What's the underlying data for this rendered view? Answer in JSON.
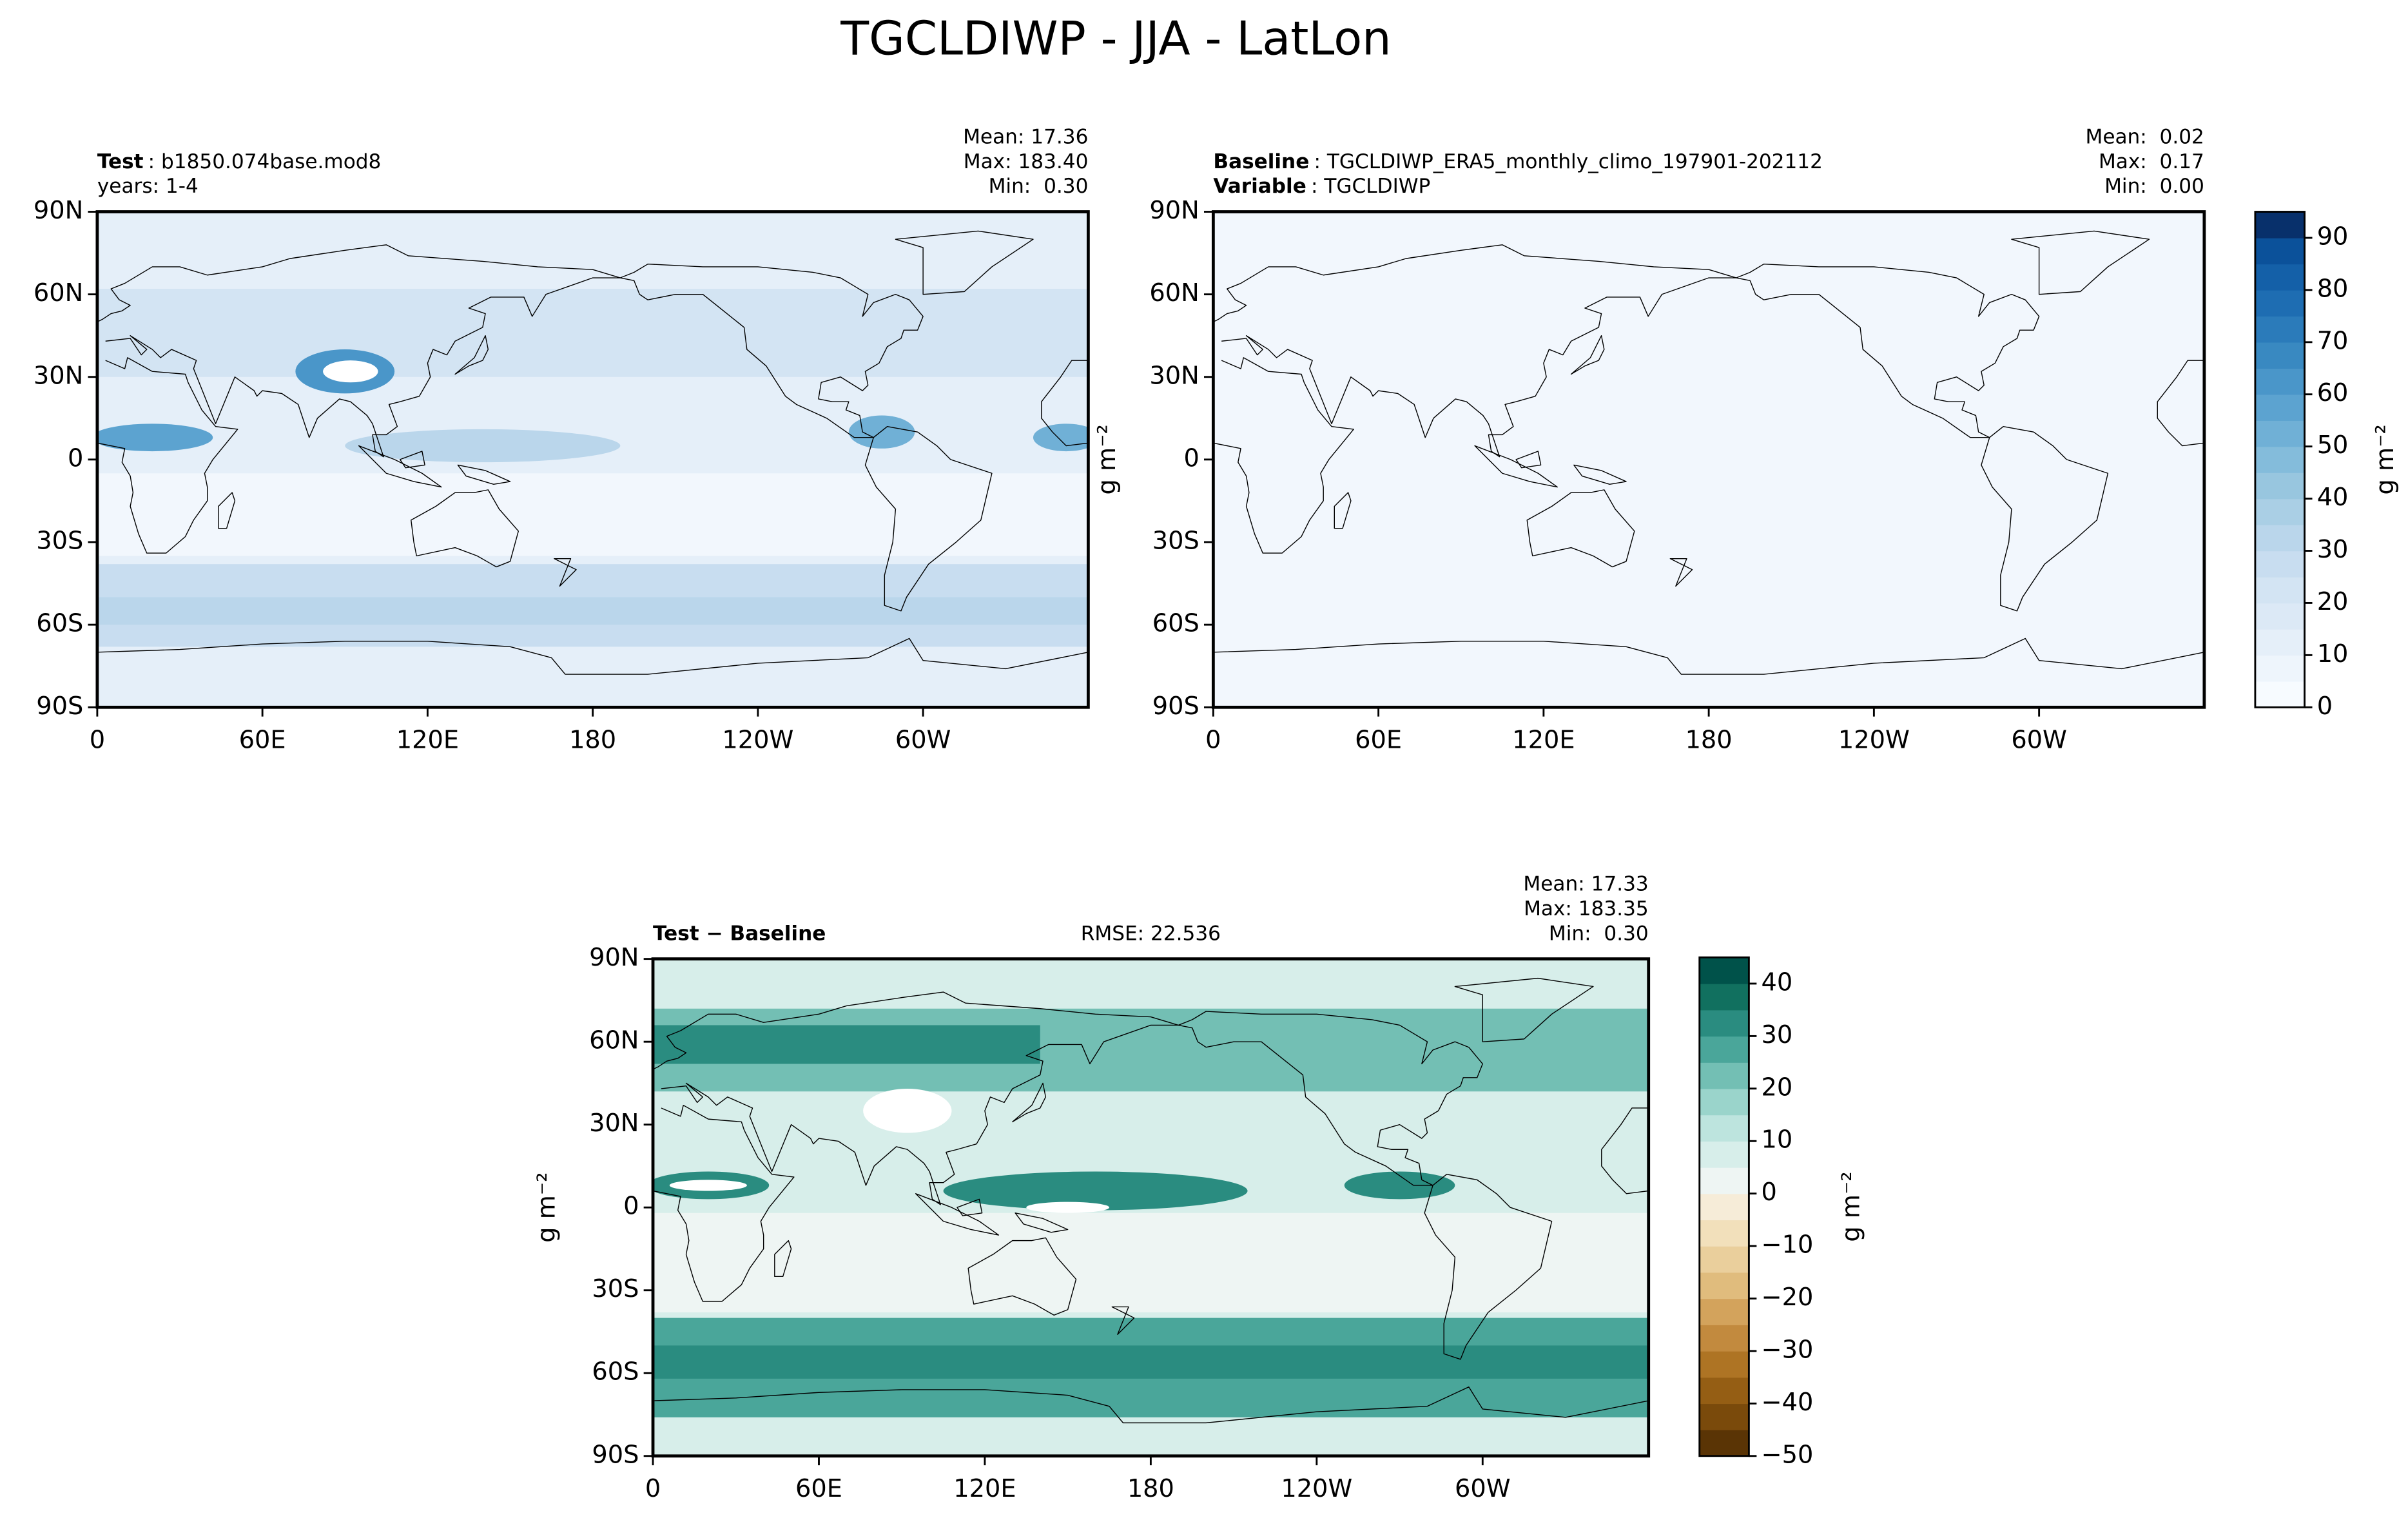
{
  "title": "TGCLDIWP - JJA - LatLon",
  "chart_data": [
    {
      "type": "map",
      "headings": [
        {
          "bold": "Test",
          "text": ": b1850.074base.mod8"
        },
        {
          "text": "years: 1-4"
        }
      ],
      "stats": [
        "Mean: 17.36",
        "Max: 183.40",
        "Min:  0.30"
      ],
      "xlim": [
        0,
        360
      ],
      "ylim": [
        -90,
        90
      ],
      "xticks": [
        0,
        {
          "value": 60,
          "label": "60E"
        },
        {
          "value": 120,
          "label": "120E"
        },
        180,
        {
          "value": 240,
          "label": "120W"
        },
        {
          "value": 300,
          "label": "60W"
        }
      ],
      "yticks": [
        {
          "value": -90,
          "label": "90S"
        },
        {
          "value": -60,
          "label": "60S"
        },
        {
          "value": -30,
          "label": "30S"
        },
        0,
        {
          "value": 30,
          "label": "30N"
        },
        {
          "value": 60,
          "label": "60N"
        },
        {
          "value": 90,
          "label": "90N"
        }
      ]
    },
    {
      "type": "map",
      "headings": [
        {
          "bold": "Baseline",
          "text": ": TGCLDIWP_ERA5_monthly_climo_197901-202112"
        },
        {
          "bold": "Variable",
          "text": ": TGCLDIWP"
        }
      ],
      "stats": [
        "Mean:  0.02",
        "Max:  0.17",
        "Min:  0.00"
      ],
      "ylabel": "g m⁻²",
      "xlim": [
        0,
        360
      ],
      "ylim": [
        -90,
        90
      ],
      "xticks": [
        0,
        {
          "value": 60,
          "label": "60E"
        },
        {
          "value": 120,
          "label": "120E"
        },
        180,
        {
          "value": 240,
          "label": "120W"
        },
        {
          "value": 300,
          "label": "60W"
        }
      ],
      "yticks": [
        {
          "value": -90,
          "label": "90S"
        },
        {
          "value": -60,
          "label": "60S"
        },
        {
          "value": -30,
          "label": "30S"
        },
        0,
        {
          "value": 30,
          "label": "30N"
        },
        {
          "value": 60,
          "label": "60N"
        },
        {
          "value": 90,
          "label": "90N"
        }
      ],
      "colorbar": {
        "levels": [
          0,
          5,
          10,
          15,
          20,
          25,
          30,
          35,
          40,
          45,
          50,
          55,
          60,
          65,
          70,
          75,
          80,
          85,
          90,
          95
        ],
        "colors": [
          "#f7fbff",
          "#eef5fc",
          "#e5eff9",
          "#dce9f6",
          "#d3e4f3",
          "#c8ddf0",
          "#bad6eb",
          "#aacfe5",
          "#98c6df",
          "#84bcdb",
          "#70b0d6",
          "#5ca3d0",
          "#4a96c9",
          "#3989c1",
          "#2b7bba",
          "#1e6db2",
          "#1460a8",
          "#0b519a",
          "#08306b"
        ],
        "ticks": [
          0,
          10,
          20,
          30,
          40,
          50,
          60,
          70,
          80,
          90
        ],
        "label": "g m⁻²"
      }
    },
    {
      "type": "map",
      "headings": [
        {
          "bold": "Test − Baseline"
        }
      ],
      "center_text": "RMSE: 22.536",
      "stats": [
        "Mean: 17.33",
        "Max: 183.35",
        "Min:  0.30"
      ],
      "ylabel": "g m⁻²",
      "xlim": [
        0,
        360
      ],
      "ylim": [
        -90,
        90
      ],
      "xticks": [
        0,
        {
          "value": 60,
          "label": "60E"
        },
        {
          "value": 120,
          "label": "120E"
        },
        180,
        {
          "value": 240,
          "label": "120W"
        },
        {
          "value": 300,
          "label": "60W"
        }
      ],
      "yticks": [
        {
          "value": -90,
          "label": "90S"
        },
        {
          "value": -60,
          "label": "60S"
        },
        {
          "value": -30,
          "label": "30S"
        },
        0,
        {
          "value": 30,
          "label": "30N"
        },
        {
          "value": 60,
          "label": "60N"
        },
        {
          "value": 90,
          "label": "90N"
        }
      ],
      "colorbar": {
        "levels": [
          -50,
          -45,
          -40,
          -35,
          -30,
          -25,
          -20,
          -15,
          -10,
          -5,
          0,
          5,
          10,
          15,
          20,
          25,
          30,
          35,
          40,
          45
        ],
        "colors": [
          "#5a3405",
          "#7a4a0b",
          "#955e14",
          "#ae7424",
          "#c28a3e",
          "#d3a35c",
          "#e0bc7d",
          "#eacf9c",
          "#f2e0bb",
          "#f6ecd8",
          "#eef5f3",
          "#d7eeea",
          "#bde4de",
          "#9ad4cb",
          "#73bfb4",
          "#4aa69a",
          "#2a8c80",
          "#11705f",
          "#00524a"
        ],
        "ticks": [
          {
            "value": -50,
            "label": "−50"
          },
          {
            "value": -40,
            "label": "−40"
          },
          {
            "value": -30,
            "label": "−30"
          },
          {
            "value": -20,
            "label": "−20"
          },
          {
            "value": -10,
            "label": "−10"
          },
          0,
          10,
          20,
          30,
          40
        ],
        "label": "g m⁻²"
      }
    }
  ]
}
